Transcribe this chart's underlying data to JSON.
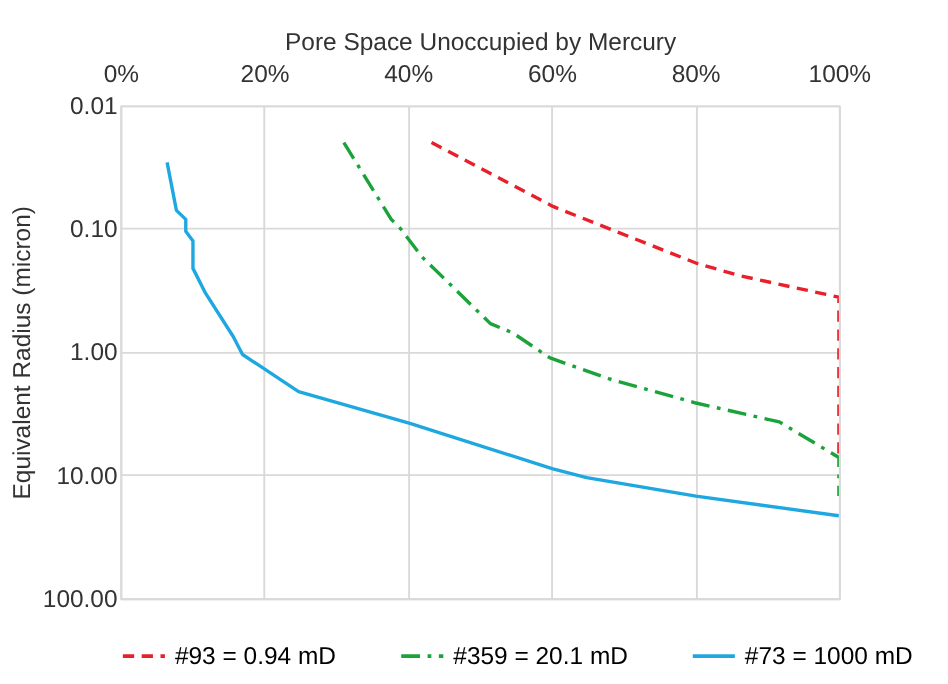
{
  "chart_data": {
    "type": "line",
    "xlabel": "Pore Space Unoccupied by Mercury",
    "ylabel": "Equivalent Radius (micron)",
    "xlim": [
      0,
      100
    ],
    "xticks": [
      {
        "value": 0,
        "label": "0%"
      },
      {
        "value": 20,
        "label": "20%"
      },
      {
        "value": 40,
        "label": "40%"
      },
      {
        "value": 60,
        "label": "60%"
      },
      {
        "value": 80,
        "label": "80%"
      },
      {
        "value": 100,
        "label": "100%"
      }
    ],
    "ylim": [
      100,
      0.01
    ],
    "yticks": [
      {
        "value": 0.01,
        "label": "0.01"
      },
      {
        "value": 0.1,
        "label": "0.10"
      },
      {
        "value": 1,
        "label": "1.00"
      },
      {
        "value": 10,
        "label": "10.00"
      },
      {
        "value": 100,
        "label": "100.00"
      }
    ],
    "log": "y",
    "grid": true,
    "legend": "bottom",
    "marker": "none",
    "series": [
      {
        "name": "#93 = 0.94 mD",
        "color": "#e8202a",
        "line_style": "dashed",
        "x": [
          43.3,
          60.2,
          80.1,
          86.1,
          100,
          100
        ],
        "values": [
          0.02,
          0.066,
          0.19,
          0.24,
          0.36,
          7.5
        ]
      },
      {
        "name": "#359 = 20.1 mD",
        "color": "#1aa33a",
        "line_style": "dashdot",
        "x": [
          31.1,
          37.7,
          39.0,
          42.0,
          51.5,
          54.6,
          59.8,
          68.1,
          80.1,
          91.7,
          100,
          100
        ],
        "values": [
          0.02,
          0.084,
          0.1,
          0.17,
          0.59,
          0.7,
          1.12,
          1.66,
          2.6,
          3.7,
          7.2,
          14.8
        ]
      },
      {
        "name": "#73 = 1000 mD",
        "color": "#1fa8e0",
        "line_style": "solid",
        "x": [
          6.5,
          7.8,
          9.1,
          9.1,
          10.1,
          10.1,
          11.8,
          15.7,
          17.0,
          24.8,
          40.3,
          60.2,
          64.9,
          80.1,
          100
        ],
        "values": [
          0.029,
          0.071,
          0.084,
          0.105,
          0.126,
          0.21,
          0.33,
          0.75,
          1.05,
          2.1,
          3.8,
          8.9,
          10.5,
          14.8,
          21.4
        ]
      }
    ]
  }
}
